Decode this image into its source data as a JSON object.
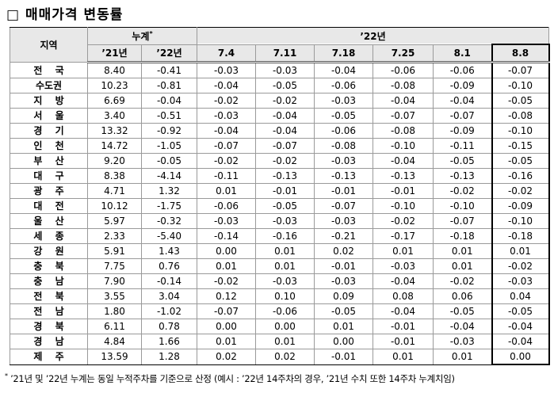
{
  "title": "□ 매매가격 변동률",
  "table": {
    "header": {
      "region": "지역",
      "cumulative": {
        "label": "누계",
        "mark": "*"
      },
      "weekly_group": "’22년",
      "cumulative_years": [
        "’21년",
        "’22년"
      ],
      "weeks": [
        "7.4",
        "7.11",
        "7.18",
        "7.25",
        "8.1",
        "8.8"
      ]
    },
    "rows": [
      [
        "전 국",
        "8.40",
        "-0.41",
        "-0.03",
        "-0.03",
        "-0.04",
        "-0.06",
        "-0.06",
        "-0.07"
      ],
      [
        "수도권",
        "10.23",
        "-0.81",
        "-0.04",
        "-0.05",
        "-0.06",
        "-0.08",
        "-0.09",
        "-0.10"
      ],
      [
        "지 방",
        "6.69",
        "-0.04",
        "-0.02",
        "-0.02",
        "-0.03",
        "-0.04",
        "-0.04",
        "-0.05"
      ],
      [
        "서 울",
        "3.40",
        "-0.51",
        "-0.03",
        "-0.04",
        "-0.05",
        "-0.07",
        "-0.07",
        "-0.08"
      ],
      [
        "경 기",
        "13.32",
        "-0.92",
        "-0.04",
        "-0.04",
        "-0.06",
        "-0.08",
        "-0.09",
        "-0.10"
      ],
      [
        "인 천",
        "14.72",
        "-1.05",
        "-0.07",
        "-0.07",
        "-0.08",
        "-0.10",
        "-0.11",
        "-0.15"
      ],
      [
        "부 산",
        "9.20",
        "-0.05",
        "-0.02",
        "-0.02",
        "-0.03",
        "-0.04",
        "-0.05",
        "-0.05"
      ],
      [
        "대 구",
        "8.38",
        "-4.14",
        "-0.11",
        "-0.13",
        "-0.13",
        "-0.13",
        "-0.13",
        "-0.16"
      ],
      [
        "광 주",
        "4.71",
        "1.32",
        "0.01",
        "-0.01",
        "-0.01",
        "-0.01",
        "-0.02",
        "-0.02"
      ],
      [
        "대 전",
        "10.12",
        "-1.75",
        "-0.06",
        "-0.05",
        "-0.07",
        "-0.10",
        "-0.10",
        "-0.09"
      ],
      [
        "울 산",
        "5.97",
        "-0.32",
        "-0.03",
        "-0.03",
        "-0.03",
        "-0.02",
        "-0.07",
        "-0.10"
      ],
      [
        "세 종",
        "2.33",
        "-5.40",
        "-0.14",
        "-0.16",
        "-0.21",
        "-0.17",
        "-0.18",
        "-0.18"
      ],
      [
        "강 원",
        "5.91",
        "1.43",
        "0.00",
        "0.01",
        "0.02",
        "0.01",
        "0.01",
        "0.01"
      ],
      [
        "충 북",
        "7.75",
        "0.76",
        "0.01",
        "0.01",
        "-0.01",
        "-0.03",
        "0.01",
        "-0.02"
      ],
      [
        "충 남",
        "7.90",
        "-0.14",
        "-0.02",
        "-0.03",
        "-0.03",
        "-0.04",
        "-0.02",
        "-0.03"
      ],
      [
        "전 북",
        "3.55",
        "3.04",
        "0.12",
        "0.10",
        "0.09",
        "0.08",
        "0.06",
        "0.04"
      ],
      [
        "전 남",
        "1.80",
        "-1.02",
        "-0.07",
        "-0.06",
        "-0.05",
        "-0.04",
        "-0.05",
        "-0.05"
      ],
      [
        "경 북",
        "6.11",
        "0.78",
        "0.00",
        "0.00",
        "0.01",
        "-0.01",
        "-0.04",
        "-0.04"
      ],
      [
        "경 남",
        "4.84",
        "1.66",
        "0.01",
        "0.01",
        "0.00",
        "-0.01",
        "-0.03",
        "-0.04"
      ],
      [
        "제 주",
        "13.59",
        "1.28",
        "0.02",
        "0.02",
        "-0.01",
        "0.01",
        "0.01",
        "0.00"
      ]
    ]
  },
  "footnote": {
    "mark": "*",
    "text": "’21년 및 ’22년 누계는 동일 누적주차를 기준으로 산정 (예시 : ’22년 14주차의 경우, ’21년 수치 또한 14주차 누계치임)"
  }
}
